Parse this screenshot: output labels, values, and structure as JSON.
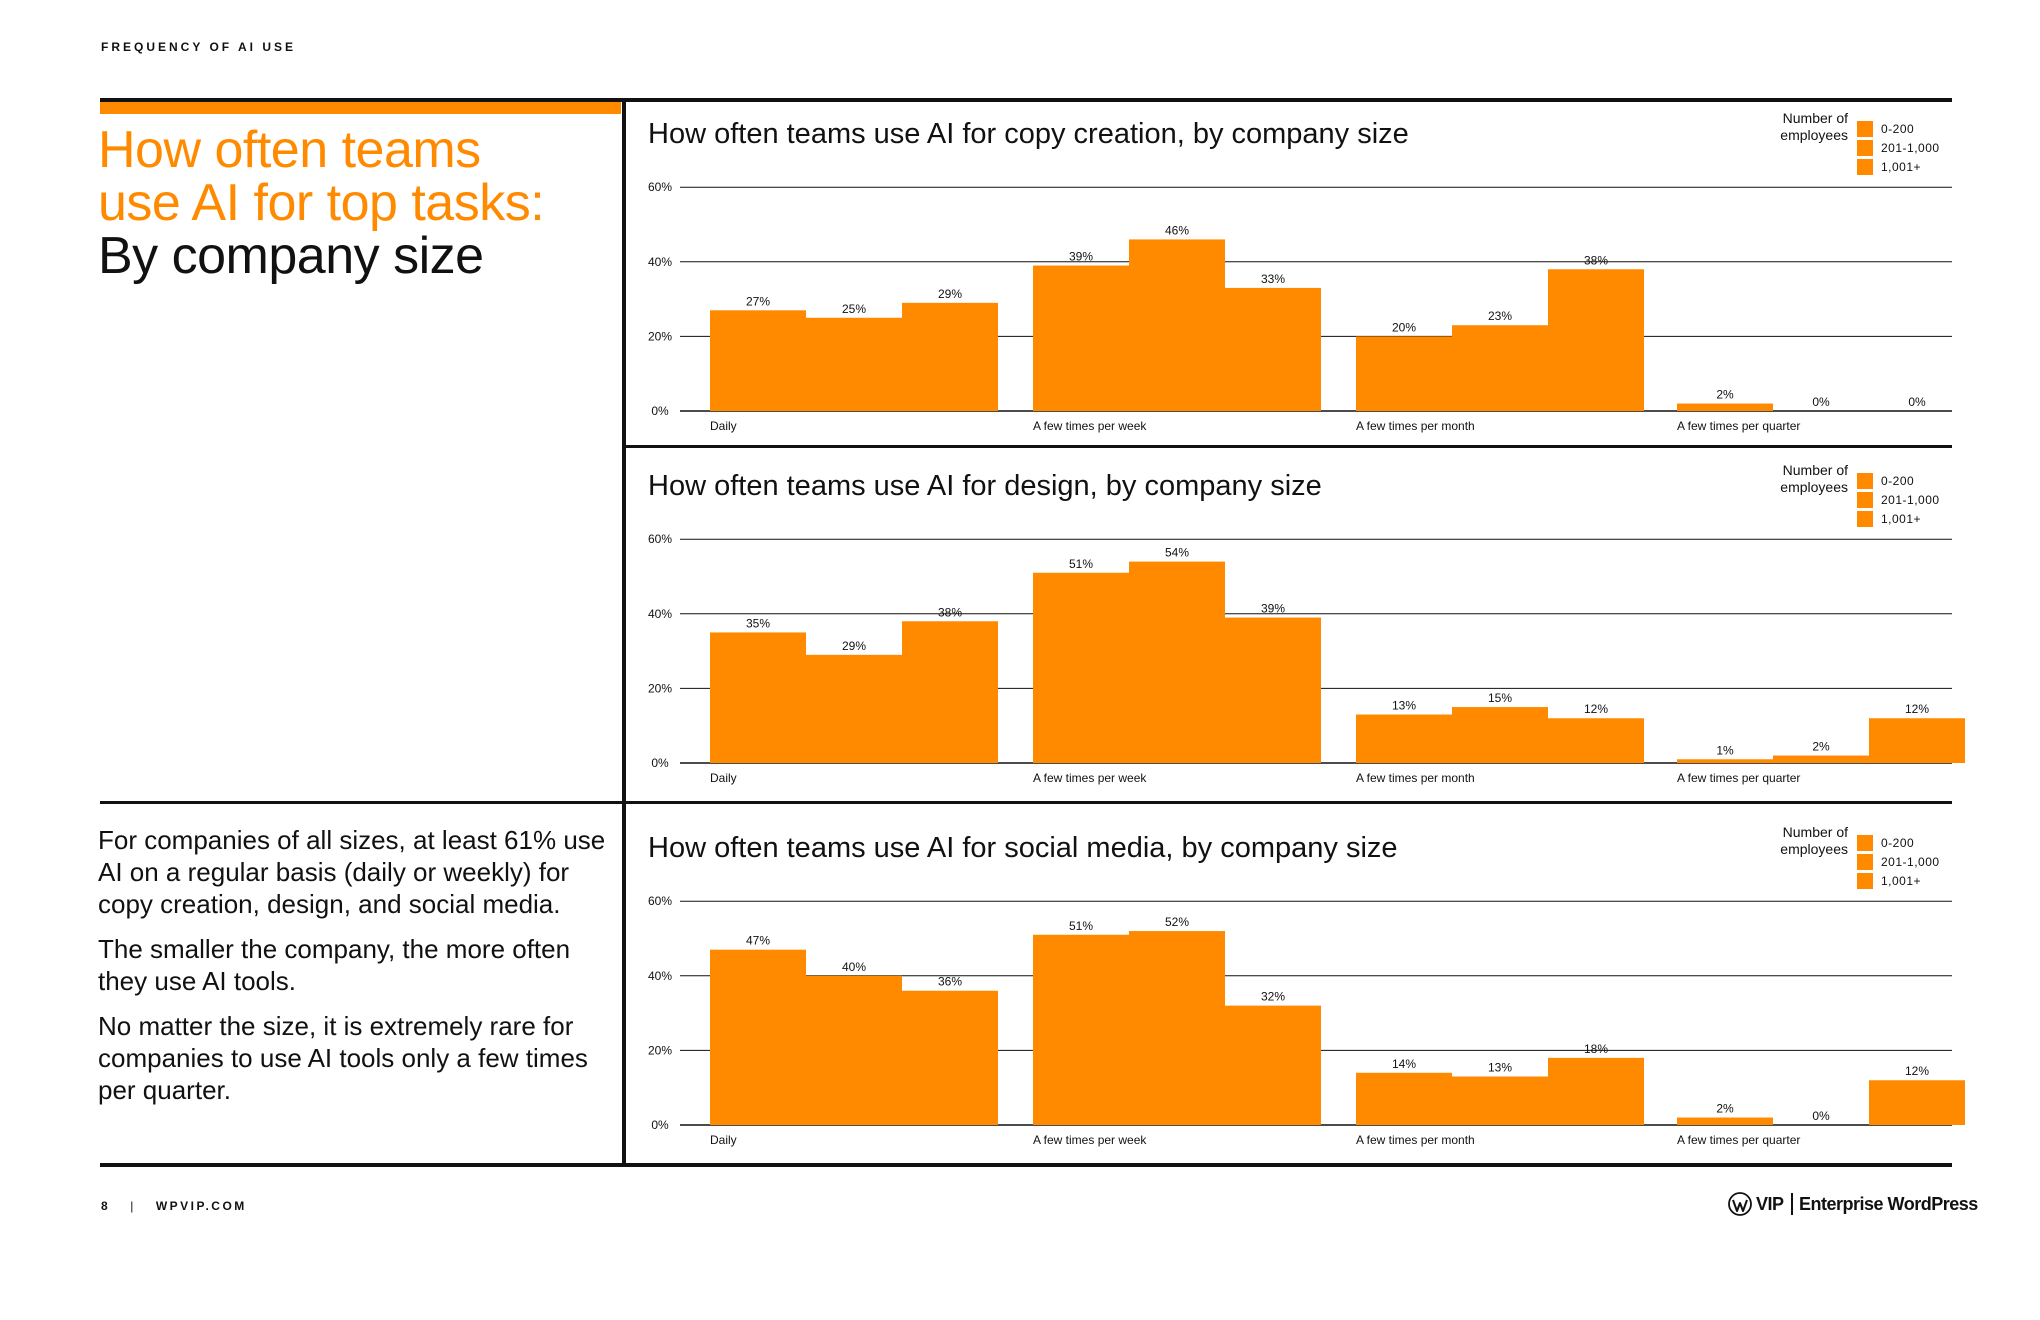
{
  "page": {
    "section_label": "FREQUENCY OF AI USE",
    "headline_orange": [
      "How often teams",
      "use AI for top tasks:"
    ],
    "headline_dark": "By company size",
    "body_paragraphs": [
      "For companies of all sizes, at least 61% use AI on a regular basis (daily or weekly) for copy creation, design, and social media.",
      "The smaller the company, the more often they use AI tools.",
      "No matter the size, it is extremely rare for companies to use AI tools only a few times per quarter."
    ],
    "footer": {
      "page_number": "8",
      "separator": "|",
      "site": "WPVIP.COM",
      "brand_vip": "VIP",
      "brand_name": "Enterprise WordPress"
    }
  },
  "colors": {
    "accent": "#ff8a00",
    "text": "#111111",
    "background": "#ffffff"
  },
  "chart_data": [
    {
      "type": "bar",
      "title": "How often teams use AI for copy creation, by company size",
      "categories": [
        "Daily",
        "A few times per week",
        "A few times per month",
        "A few times per quarter"
      ],
      "legend_title": "Number of employees",
      "legend_position": "top-right",
      "series": [
        {
          "name": "0-200",
          "values": [
            27,
            39,
            20,
            2
          ]
        },
        {
          "name": "201-1,000",
          "values": [
            25,
            46,
            23,
            0
          ]
        },
        {
          "name": "1,001+",
          "values": [
            29,
            33,
            38,
            0
          ]
        }
      ],
      "value_labels": [
        [
          "27%",
          "25%",
          "29%"
        ],
        [
          "39%",
          "46%",
          "33%"
        ],
        [
          "20%",
          "23%",
          "38%"
        ],
        [
          "2%",
          "0%",
          "0%"
        ]
      ],
      "yticks": [
        "0%",
        "20%",
        "40%",
        "60%"
      ],
      "ylim": [
        0,
        60
      ],
      "grid": true
    },
    {
      "type": "bar",
      "title": "How often teams use AI for design, by company size",
      "categories": [
        "Daily",
        "A few times per week",
        "A few times per month",
        "A few times per quarter"
      ],
      "legend_title": "Number of employees",
      "legend_position": "top-right",
      "series": [
        {
          "name": "0-200",
          "values": [
            35,
            51,
            13,
            1
          ]
        },
        {
          "name": "201-1,000",
          "values": [
            29,
            54,
            15,
            2
          ]
        },
        {
          "name": "1,001+",
          "values": [
            38,
            39,
            12,
            12
          ]
        }
      ],
      "value_labels": [
        [
          "35%",
          "29%",
          "38%"
        ],
        [
          "51%",
          "54%",
          "39%"
        ],
        [
          "13%",
          "15%",
          "12%"
        ],
        [
          "1%",
          "2%",
          "12%"
        ]
      ],
      "yticks": [
        "0%",
        "20%",
        "40%",
        "60%"
      ],
      "ylim": [
        0,
        60
      ],
      "grid": true
    },
    {
      "type": "bar",
      "title": "How often teams use AI for social media, by company size",
      "categories": [
        "Daily",
        "A few times per week",
        "A few times per month",
        "A few times per quarter"
      ],
      "legend_title": "Number of employees",
      "legend_position": "top-right",
      "series": [
        {
          "name": "0-200",
          "values": [
            47,
            51,
            14,
            2
          ]
        },
        {
          "name": "201-1,000",
          "values": [
            40,
            52,
            13,
            0
          ]
        },
        {
          "name": "1,001+",
          "values": [
            36,
            32,
            18,
            12
          ]
        }
      ],
      "value_labels": [
        [
          "47%",
          "40%",
          "36%"
        ],
        [
          "51%",
          "52%",
          "32%"
        ],
        [
          "14%",
          "13%",
          "18%"
        ],
        [
          "2%",
          "0%",
          "12%"
        ]
      ],
      "yticks": [
        "0%",
        "20%",
        "40%",
        "60%"
      ],
      "ylim": [
        0,
        60
      ],
      "grid": true
    }
  ]
}
